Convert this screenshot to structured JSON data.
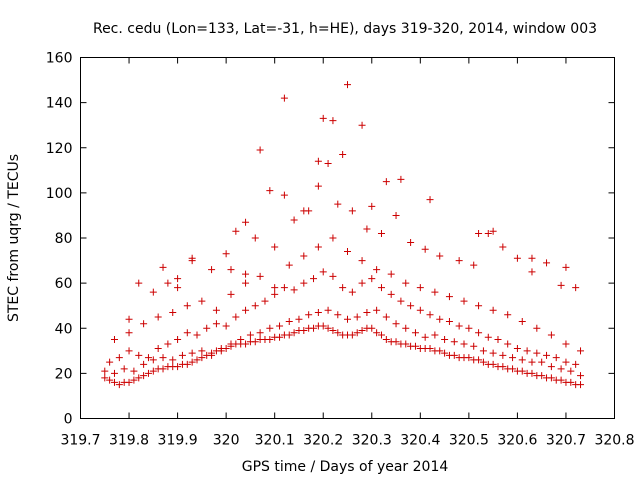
{
  "chart_data": {
    "type": "scatter",
    "title": "Rec. cedu (Lon=133, Lat=-31, h=HE), days 319-320, 2014, window 003",
    "xlabel": "GPS time / Days of year 2014",
    "ylabel": "STEC from uqrg / TECUs",
    "xlim": [
      319.7,
      320.8
    ],
    "ylim": [
      0,
      160
    ],
    "xticks": [
      319.7,
      319.8,
      319.9,
      320,
      320.1,
      320.2,
      320.3,
      320.4,
      320.5,
      320.6,
      320.7,
      320.8
    ],
    "xtick_labels": [
      "319.7",
      "319.8",
      "319.9",
      "320",
      "320.1",
      "320.2",
      "320.3",
      "320.4",
      "320.5",
      "320.6",
      "320.7",
      "320.8"
    ],
    "yticks": [
      0,
      20,
      40,
      60,
      80,
      100,
      120,
      140,
      160
    ],
    "ytick_labels": [
      "0",
      "20",
      "40",
      "60",
      "80",
      "100",
      "120",
      "140",
      "160"
    ],
    "grid": false,
    "legend": "none",
    "marker": "plus",
    "color": "#cc0000",
    "series": [
      {
        "x": [
          319.75,
          319.76,
          319.77,
          319.78,
          319.79,
          319.8,
          319.81,
          319.82,
          319.83,
          319.84,
          319.85,
          319.86,
          319.87,
          319.88,
          319.89,
          319.9,
          319.91,
          319.92,
          319.93,
          319.94,
          319.95,
          319.96,
          319.97,
          319.98,
          319.99,
          320.0,
          320.01,
          320.02,
          320.03,
          320.04,
          320.05,
          320.06,
          320.07,
          320.08,
          320.09,
          320.1,
          320.11,
          320.12,
          320.13,
          320.14,
          320.15,
          320.16,
          320.17,
          320.18,
          320.19,
          320.2,
          320.21,
          320.22,
          320.23,
          320.24,
          320.25,
          320.26,
          320.27,
          320.28,
          320.29,
          320.3,
          320.31,
          320.32,
          320.33,
          320.34,
          320.35,
          320.36,
          320.37,
          320.38,
          320.39,
          320.4,
          320.41,
          320.42,
          320.43,
          320.44,
          320.45,
          320.46,
          320.47,
          320.48,
          320.49,
          320.5,
          320.51,
          320.52,
          320.53,
          320.54,
          320.55,
          320.56,
          320.57,
          320.58,
          320.59,
          320.6,
          320.61,
          320.62,
          320.63,
          320.64,
          320.65,
          320.66,
          320.67,
          320.68,
          320.69,
          320.7,
          320.71,
          320.72,
          320.73
        ],
        "y": [
          18,
          17,
          16,
          15,
          16,
          16,
          17,
          18,
          19,
          20,
          21,
          22,
          22,
          23,
          23,
          23,
          24,
          24,
          25,
          26,
          27,
          28,
          29,
          30,
          31,
          31,
          32,
          33,
          33,
          33,
          34,
          34,
          35,
          35,
          35,
          36,
          36,
          37,
          37,
          38,
          39,
          39,
          40,
          40,
          41,
          41,
          40,
          39,
          38,
          37,
          37,
          37,
          38,
          39,
          40,
          40,
          38,
          37,
          35,
          34,
          34,
          33,
          33,
          32,
          32,
          31,
          31,
          31,
          30,
          30,
          29,
          28,
          28,
          27,
          27,
          27,
          26,
          26,
          25,
          24,
          24,
          23,
          23,
          22,
          22,
          21,
          21,
          20,
          20,
          19,
          19,
          18,
          18,
          17,
          17,
          16,
          16,
          15,
          15
        ]
      },
      {
        "x": [
          319.75,
          319.77,
          319.79,
          319.81,
          319.83,
          319.85,
          319.87,
          319.89,
          319.91,
          319.93,
          319.95,
          319.97,
          319.99,
          320.01,
          320.03,
          320.05,
          320.07,
          320.09,
          320.11,
          320.13,
          320.15,
          320.17,
          320.19,
          320.21,
          320.23,
          320.25,
          320.27,
          320.29,
          320.31,
          320.33,
          320.35,
          320.37,
          320.39,
          320.41,
          320.43,
          320.45,
          320.47,
          320.49,
          320.51,
          320.53,
          320.55,
          320.57,
          320.59,
          320.61,
          320.63,
          320.65,
          320.67,
          320.69,
          320.71,
          320.73
        ],
        "y": [
          21,
          20,
          22,
          21,
          24,
          26,
          27,
          26,
          28,
          29,
          30,
          28,
          30,
          33,
          35,
          37,
          38,
          40,
          41,
          43,
          44,
          46,
          47,
          48,
          46,
          44,
          45,
          47,
          48,
          45,
          42,
          40,
          38,
          36,
          37,
          35,
          34,
          33,
          32,
          30,
          29,
          28,
          27,
          26,
          25,
          25,
          23,
          22,
          21,
          19
        ]
      },
      {
        "x": [
          319.76,
          319.78,
          319.8,
          319.82,
          319.84,
          319.86,
          319.88,
          319.9,
          319.92,
          319.94,
          319.96,
          319.98,
          320.0,
          320.02,
          320.04,
          320.06,
          320.08,
          320.1,
          320.12,
          320.14,
          320.16,
          320.18,
          320.2,
          320.22,
          320.24,
          320.26,
          320.28,
          320.3,
          320.32,
          320.34,
          320.36,
          320.38,
          320.4,
          320.42,
          320.44,
          320.46,
          320.48,
          320.5,
          320.52,
          320.54,
          320.56,
          320.58,
          320.6,
          320.62,
          320.64,
          320.66,
          320.68,
          320.7,
          320.72
        ],
        "y": [
          25,
          27,
          30,
          28,
          27,
          31,
          33,
          35,
          38,
          37,
          40,
          42,
          41,
          45,
          48,
          50,
          52,
          55,
          58,
          57,
          60,
          62,
          65,
          63,
          58,
          56,
          60,
          62,
          58,
          55,
          52,
          50,
          48,
          46,
          44,
          43,
          41,
          40,
          38,
          36,
          35,
          33,
          31,
          30,
          29,
          28,
          27,
          25,
          24
        ]
      },
      {
        "x": [
          319.77,
          319.8,
          319.83,
          319.86,
          319.89,
          319.92,
          319.95,
          319.98,
          320.01,
          320.04,
          320.07,
          320.1,
          320.13,
          320.16,
          320.19,
          320.22,
          320.25,
          320.28,
          320.31,
          320.34,
          320.37,
          320.4,
          320.43,
          320.46,
          320.49,
          320.52,
          320.55,
          320.58,
          320.61,
          320.64,
          320.67,
          320.7,
          320.73
        ],
        "y": [
          35,
          38,
          42,
          45,
          47,
          50,
          52,
          48,
          55,
          60,
          63,
          58,
          68,
          72,
          76,
          80,
          74,
          70,
          66,
          64,
          60,
          58,
          56,
          54,
          52,
          50,
          48,
          46,
          43,
          40,
          37,
          33,
          30
        ]
      },
      {
        "x": [
          319.8,
          319.85,
          319.88,
          319.9,
          319.93,
          319.97,
          320.0,
          320.02,
          320.04,
          320.06,
          320.09,
          320.12,
          320.14,
          320.17,
          320.19,
          320.21,
          320.23,
          320.26,
          320.29,
          320.32,
          320.35,
          320.38,
          320.41,
          320.44,
          320.48,
          320.51,
          320.54,
          320.57,
          320.6,
          320.63,
          320.66,
          320.69,
          320.72
        ],
        "y": [
          44,
          56,
          60,
          62,
          70,
          66,
          73,
          83,
          87,
          80,
          101,
          99,
          88,
          92,
          103,
          113,
          95,
          92,
          84,
          82,
          90,
          78,
          75,
          72,
          70,
          68,
          82,
          76,
          71,
          65,
          69,
          59,
          58
        ]
      },
      {
        "x": [
          319.82,
          319.87,
          319.9,
          319.93,
          320.01,
          320.04,
          320.07,
          320.1,
          320.12,
          320.16,
          320.19,
          320.2,
          320.22,
          320.24,
          320.25,
          320.28,
          320.3,
          320.33,
          320.36,
          320.42,
          320.52,
          320.55,
          320.63,
          320.7
        ],
        "y": [
          60,
          67,
          58,
          71,
          66,
          64,
          119,
          76,
          142,
          92,
          114,
          133,
          132,
          117,
          148,
          130,
          94,
          105,
          106,
          97,
          82,
          83,
          71,
          67
        ]
      }
    ]
  }
}
